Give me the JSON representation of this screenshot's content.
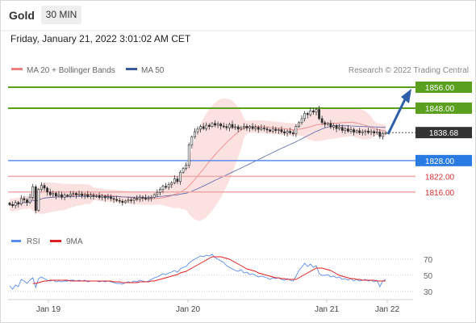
{
  "header": {
    "instrument": "Gold",
    "timeframe": "30 MIN",
    "datetime": "Friday, January 21, 2022 3:01:02 AM CET"
  },
  "legend": {
    "ma20_bb": "MA 20 + Bollinger Bands",
    "ma50": "MA 50",
    "credit": "Research © 2022 Trading Central",
    "rsi": "RSI",
    "rsi_ma": "9MA"
  },
  "colors": {
    "green": "#5aa01e",
    "blue_line": "#5b8def",
    "blue_tag": "#2a7ae4",
    "red_line": "#f3a7a7",
    "red_text": "#d93030",
    "current_tag": "#333333",
    "ma50": "#5566aa",
    "ma20": "#f08080",
    "band": "#fcdcdc",
    "arrow": "#2e5fa8",
    "rsi": "#5b8def",
    "rsi_ma": "#e02020"
  },
  "chart_data": [
    {
      "type": "candlestick",
      "x_labels": [
        "Jan 19",
        "Jan 20",
        "Jan 21",
        "Jan 22"
      ],
      "ylim": [
        1803,
        1860
      ],
      "levels": [
        {
          "value": 1856.0,
          "label": "1856.00",
          "kind": "resistance"
        },
        {
          "value": 1848.0,
          "label": "1848.00",
          "kind": "resistance"
        },
        {
          "value": 1838.68,
          "label": "1838.68",
          "kind": "current"
        },
        {
          "value": 1828.0,
          "label": "1828.00",
          "kind": "pivot"
        },
        {
          "value": 1822.0,
          "label": "1822.00",
          "kind": "support"
        },
        {
          "value": 1816.0,
          "label": "1816.00",
          "kind": "support"
        }
      ],
      "close": [
        1811.2,
        1810.8,
        1812.0,
        1811.5,
        1813.5,
        1813.0,
        1812.0,
        1814.0,
        1818.0,
        1809.0,
        1817.0,
        1818.5,
        1817.5,
        1816.0,
        1815.0,
        1815.5,
        1814.5,
        1815.0,
        1814.0,
        1814.8,
        1814.5,
        1815.2,
        1815.5,
        1814.9,
        1815.3,
        1814.6,
        1815.0,
        1814.2,
        1814.8,
        1814.3,
        1814.6,
        1813.9,
        1814.4,
        1813.8,
        1814.1,
        1813.5,
        1813.2,
        1812.8,
        1812.5,
        1812.0,
        1812.6,
        1813.0,
        1812.8,
        1813.5,
        1813.2,
        1814.0,
        1813.7,
        1813.3,
        1813.6,
        1814.0,
        1815.0,
        1815.8,
        1817.0,
        1818.2,
        1817.8,
        1818.8,
        1819.5,
        1821.0,
        1820.0,
        1823.5,
        1825.0,
        1826.2,
        1834.0,
        1837.0,
        1839.0,
        1840.0,
        1841.0,
        1840.2,
        1841.5,
        1841.0,
        1842.2,
        1841.5,
        1842.0,
        1841.2,
        1841.0,
        1840.5,
        1841.8,
        1840.6,
        1840.9,
        1840.0,
        1840.6,
        1841.1,
        1840.4,
        1841.0,
        1840.2,
        1840.7,
        1839.9,
        1840.4,
        1840.1,
        1839.7,
        1839.2,
        1840.0,
        1839.5,
        1839.8,
        1839.0,
        1838.5,
        1839.2,
        1838.6,
        1838.2,
        1841.0,
        1842.5,
        1844.0,
        1846.0,
        1845.5,
        1847.0,
        1846.5,
        1847.5,
        1844.0,
        1842.5,
        1841.8,
        1842.2,
        1840.8,
        1841.4,
        1840.2,
        1840.7,
        1839.5,
        1840.1,
        1839.2,
        1839.8,
        1838.8,
        1839.4,
        1838.6,
        1839.0,
        1839.3,
        1838.7,
        1839.1,
        1838.5,
        1838.9,
        1837.2,
        1838.3,
        1838.7
      ],
      "rsi_ylim": [
        20,
        80
      ],
      "rsi_ticks": [
        70,
        50,
        30
      ],
      "rsi_values": [
        37,
        33,
        38,
        36,
        45,
        43,
        40,
        44,
        47,
        35,
        46,
        48,
        46,
        44,
        43,
        44,
        42,
        43,
        42,
        43,
        43,
        44,
        44,
        43,
        44,
        43,
        44,
        42,
        43,
        43,
        43,
        42,
        43,
        42,
        43,
        42,
        41,
        40,
        40,
        39,
        41,
        42,
        41,
        43,
        42,
        44,
        43,
        42,
        43,
        45,
        47,
        48,
        50,
        52,
        51,
        53,
        54,
        56,
        54,
        58,
        60,
        61,
        65,
        68,
        70,
        72,
        74,
        73,
        75,
        74,
        76,
        72,
        70,
        68,
        66,
        62,
        60,
        58,
        56,
        55,
        57,
        53,
        54,
        51,
        52,
        50,
        48,
        49,
        48,
        47,
        45,
        47,
        46,
        47,
        45,
        44,
        46,
        44,
        43,
        49,
        56,
        60,
        65,
        61,
        64,
        60,
        62,
        52,
        50,
        50,
        51,
        48,
        49,
        47,
        48,
        45,
        46,
        44,
        46,
        43,
        45,
        43,
        44,
        45,
        43,
        44,
        42,
        44,
        36,
        43,
        45
      ],
      "rsi_ma_values": [
        null,
        null,
        null,
        null,
        null,
        null,
        null,
        null,
        40,
        40,
        41,
        42,
        43,
        43,
        44,
        44,
        44,
        44,
        44,
        44,
        44,
        43,
        43,
        43,
        43,
        43,
        43,
        43,
        43,
        43,
        43,
        43,
        43,
        43,
        43,
        43,
        42,
        42,
        42,
        41,
        41,
        41,
        41,
        41,
        41,
        42,
        42,
        42,
        42,
        43,
        43,
        44,
        45,
        46,
        47,
        48,
        49,
        50,
        51,
        53,
        54,
        55,
        57,
        59,
        61,
        63,
        65,
        67,
        69,
        71,
        73,
        73,
        73,
        73,
        72,
        71,
        70,
        68,
        66,
        64,
        62,
        60,
        58,
        57,
        56,
        55,
        53,
        52,
        51,
        50,
        49,
        48,
        47,
        47,
        46,
        46,
        45,
        45,
        45,
        45,
        47,
        49,
        51,
        53,
        55,
        57,
        59,
        59,
        59,
        58,
        57,
        56,
        54,
        52,
        50,
        49,
        48,
        47,
        46,
        46,
        45,
        45,
        44,
        44,
        44,
        44,
        44,
        43,
        43,
        43,
        43
      ]
    }
  ]
}
